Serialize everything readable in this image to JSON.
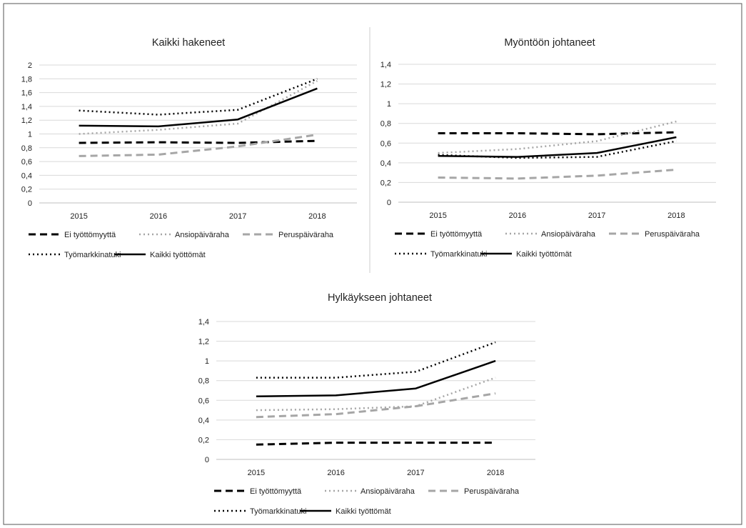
{
  "chart_data": [
    {
      "type": "line",
      "title": "Kaikki hakeneet",
      "xlabel": "",
      "ylabel": "",
      "categories": [
        "2015",
        "2016",
        "2017",
        "2018"
      ],
      "ylim": [
        0,
        2
      ],
      "yticks": [
        "0",
        "0,2",
        "0,4",
        "0,6",
        "0,8",
        "1",
        "1,2",
        "1,4",
        "1,6",
        "1,8",
        "2"
      ],
      "grid": true,
      "legend_position": "bottom",
      "series": [
        {
          "name": "Ei työttömyyttä",
          "values": [
            0.87,
            0.88,
            0.87,
            0.9
          ]
        },
        {
          "name": "Ansiopäiväraha",
          "values": [
            1.0,
            1.06,
            1.15,
            1.77
          ]
        },
        {
          "name": "Peruspäiväraha",
          "values": [
            0.68,
            0.7,
            0.82,
            0.99
          ]
        },
        {
          "name": "Työmarkkinatuki",
          "values": [
            1.34,
            1.28,
            1.35,
            1.8
          ]
        },
        {
          "name": "Kaikki työttömät",
          "values": [
            1.12,
            1.11,
            1.21,
            1.66
          ]
        }
      ]
    },
    {
      "type": "line",
      "title": "Myöntöön johtaneet",
      "xlabel": "",
      "ylabel": "",
      "categories": [
        "2015",
        "2016",
        "2017",
        "2018"
      ],
      "ylim": [
        0,
        1.4
      ],
      "yticks": [
        "0",
        "0,2",
        "0,4",
        "0,6",
        "0,8",
        "1",
        "1,2",
        "1,4"
      ],
      "grid": true,
      "legend_position": "bottom",
      "series": [
        {
          "name": "Ei työttömyyttä",
          "values": [
            0.7,
            0.7,
            0.69,
            0.71
          ]
        },
        {
          "name": "Ansiopäiväraha",
          "values": [
            0.5,
            0.54,
            0.62,
            0.82
          ]
        },
        {
          "name": "Peruspäiväraha",
          "values": [
            0.25,
            0.24,
            0.27,
            0.33
          ]
        },
        {
          "name": "Työmarkkinatuki",
          "values": [
            0.48,
            0.45,
            0.46,
            0.62
          ]
        },
        {
          "name": "Kaikki työttömät",
          "values": [
            0.47,
            0.46,
            0.5,
            0.66
          ]
        }
      ]
    },
    {
      "type": "line",
      "title": "Hylkäykseen johtaneet",
      "xlabel": "",
      "ylabel": "",
      "categories": [
        "2015",
        "2016",
        "2017",
        "2018"
      ],
      "ylim": [
        0,
        1.4
      ],
      "yticks": [
        "0",
        "0,2",
        "0,4",
        "0,6",
        "0,8",
        "1",
        "1,2",
        "1,4"
      ],
      "grid": true,
      "legend_position": "bottom",
      "series": [
        {
          "name": "Ei työttömyyttä",
          "values": [
            0.15,
            0.17,
            0.17,
            0.17
          ]
        },
        {
          "name": "Ansiopäiväraha",
          "values": [
            0.5,
            0.51,
            0.54,
            0.83
          ]
        },
        {
          "name": "Peruspäiväraha",
          "values": [
            0.43,
            0.46,
            0.54,
            0.67
          ]
        },
        {
          "name": "Työmarkkinatuki",
          "values": [
            0.83,
            0.83,
            0.89,
            1.19
          ]
        },
        {
          "name": "Kaikki työttömät",
          "values": [
            0.64,
            0.65,
            0.72,
            1.0
          ]
        }
      ]
    }
  ],
  "series_styles": [
    {
      "color": "#000000",
      "dash": "10 6",
      "width": 3
    },
    {
      "color": "#a6a6a6",
      "dash": "2 4",
      "width": 2.5
    },
    {
      "color": "#a6a6a6",
      "dash": "10 6",
      "width": 3
    },
    {
      "color": "#000000",
      "dash": "2 4",
      "width": 2.5
    },
    {
      "color": "#000000",
      "dash": "",
      "width": 2.5
    }
  ],
  "colors": {
    "frame": "#555555",
    "grid": "#d9d9d9",
    "axis": "#bfbfbf",
    "divider": "#cccccc"
  }
}
